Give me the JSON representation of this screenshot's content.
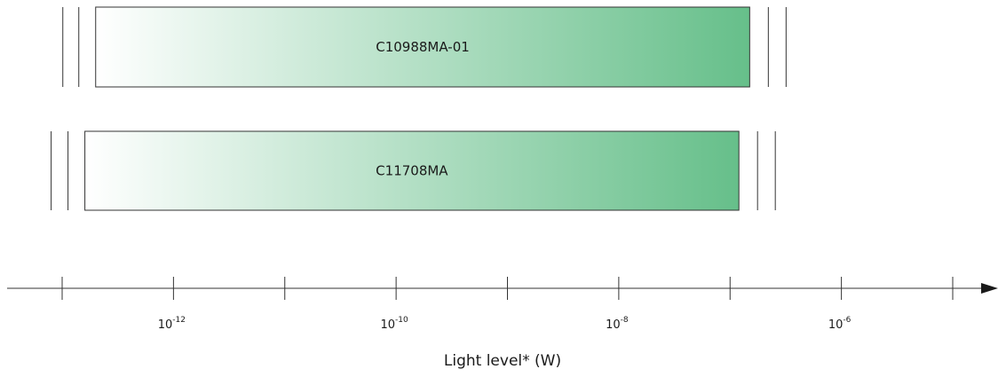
{
  "chart_data": {
    "type": "bar",
    "orientation": "horizontal",
    "xscale": "log",
    "xlabel": "Light level* (W)",
    "xlim": [
      1e-13,
      1e-05
    ],
    "x_tick_labels": [
      {
        "base": "10",
        "exp": "-12",
        "value": 1e-12
      },
      {
        "base": "10",
        "exp": "-10",
        "value": 1e-10
      },
      {
        "base": "10",
        "exp": "-8",
        "value": 1e-08
      },
      {
        "base": "10",
        "exp": "-6",
        "value": 1e-06
      }
    ],
    "bars": [
      {
        "name": "C10988MA-01",
        "start": 2e-13,
        "end": 1.5e-07
      },
      {
        "name": "C11708MA",
        "start": 1.6e-13,
        "end": 1.2e-07
      }
    ],
    "fill_gradient": [
      "#ffffff",
      "#66bf8a"
    ],
    "grid": false
  }
}
